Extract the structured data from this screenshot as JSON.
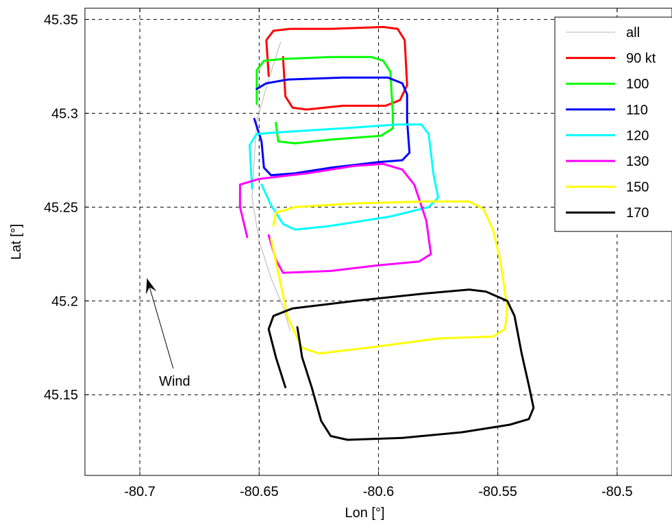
{
  "chart_data": {
    "type": "line",
    "title": "",
    "xlabel": "Lon [°]",
    "ylabel": "Lat [°]",
    "xlim": [
      -80.723,
      -80.477
    ],
    "ylim": [
      45.107,
      45.356
    ],
    "xticks": [
      -80.7,
      -80.65,
      -80.6,
      -80.55,
      -80.5
    ],
    "xtick_labels": [
      "-80.7",
      "-80.65",
      "-80.6",
      "-80.55",
      "-80.5"
    ],
    "yticks": [
      45.15,
      45.2,
      45.25,
      45.3,
      45.35
    ],
    "ytick_labels": [
      "45.15",
      "45.2",
      "45.25",
      "45.3",
      "45.35"
    ],
    "grid": true,
    "legend_position": "top-right",
    "series": [
      {
        "name": "all",
        "color": "#b4b4b4",
        "width": 1,
        "points": [
          [
            -80.641,
            45.338
          ],
          [
            -80.646,
            45.318
          ],
          [
            -80.651,
            45.296
          ],
          [
            -80.652,
            45.276
          ],
          [
            -80.653,
            45.255
          ],
          [
            -80.65,
            45.232
          ],
          [
            -80.645,
            45.212
          ],
          [
            -80.64,
            45.197
          ],
          [
            -80.637,
            45.184
          ]
        ]
      },
      {
        "name": "90 kt",
        "color": "#ff0000",
        "width": 3,
        "points": [
          [
            -80.646,
            45.32
          ],
          [
            -80.647,
            45.339
          ],
          [
            -80.644,
            45.344
          ],
          [
            -80.637,
            45.345
          ],
          [
            -80.62,
            45.345
          ],
          [
            -80.598,
            45.346
          ],
          [
            -80.592,
            45.345
          ],
          [
            -80.589,
            45.339
          ],
          [
            -80.588,
            45.315
          ],
          [
            -80.591,
            45.307
          ],
          [
            -80.597,
            45.304
          ],
          [
            -80.615,
            45.304
          ],
          [
            -80.63,
            45.302
          ],
          [
            -80.636,
            45.303
          ],
          [
            -80.639,
            45.309
          ],
          [
            -80.64,
            45.33
          ]
        ]
      },
      {
        "name": "100",
        "color": "#00ff00",
        "width": 3,
        "points": [
          [
            -80.651,
            45.305
          ],
          [
            -80.651,
            45.323
          ],
          [
            -80.648,
            45.328
          ],
          [
            -80.64,
            45.329
          ],
          [
            -80.62,
            45.33
          ],
          [
            -80.603,
            45.33
          ],
          [
            -80.598,
            45.328
          ],
          [
            -80.595,
            45.322
          ],
          [
            -80.594,
            45.3
          ],
          [
            -80.594,
            45.292
          ],
          [
            -80.599,
            45.288
          ],
          [
            -80.62,
            45.286
          ],
          [
            -80.635,
            45.284
          ],
          [
            -80.642,
            45.285
          ],
          [
            -80.643,
            45.295
          ]
        ]
      },
      {
        "name": "110",
        "color": "#0000ff",
        "width": 3,
        "points": [
          [
            -80.651,
            45.313
          ],
          [
            -80.647,
            45.316
          ],
          [
            -80.638,
            45.318
          ],
          [
            -80.615,
            45.319
          ],
          [
            -80.596,
            45.319
          ],
          [
            -80.59,
            45.316
          ],
          [
            -80.588,
            45.31
          ],
          [
            -80.588,
            45.296
          ],
          [
            -80.587,
            45.279
          ],
          [
            -80.59,
            45.275
          ],
          [
            -80.6,
            45.274
          ],
          [
            -80.62,
            45.271
          ],
          [
            -80.635,
            45.268
          ],
          [
            -80.645,
            45.267
          ],
          [
            -80.648,
            45.271
          ],
          [
            -80.649,
            45.285
          ],
          [
            -80.652,
            45.297
          ]
        ]
      },
      {
        "name": "120",
        "color": "#00ffff",
        "width": 3,
        "points": [
          [
            -80.653,
            45.26
          ],
          [
            -80.654,
            45.283
          ],
          [
            -80.651,
            45.289
          ],
          [
            -80.64,
            45.29
          ],
          [
            -80.615,
            45.292
          ],
          [
            -80.592,
            45.294
          ],
          [
            -80.582,
            45.294
          ],
          [
            -80.579,
            45.289
          ],
          [
            -80.577,
            45.268
          ],
          [
            -80.575,
            45.255
          ],
          [
            -80.579,
            45.25
          ],
          [
            -80.595,
            45.245
          ],
          [
            -80.62,
            45.24
          ],
          [
            -80.635,
            45.238
          ],
          [
            -80.64,
            45.241
          ],
          [
            -80.645,
            45.251
          ],
          [
            -80.649,
            45.262
          ]
        ]
      },
      {
        "name": "130",
        "color": "#ff00ff",
        "width": 3,
        "points": [
          [
            -80.655,
            45.234
          ],
          [
            -80.658,
            45.25
          ],
          [
            -80.658,
            45.262
          ],
          [
            -80.65,
            45.265
          ],
          [
            -80.63,
            45.268
          ],
          [
            -80.61,
            45.272
          ],
          [
            -80.598,
            45.273
          ],
          [
            -80.59,
            45.27
          ],
          [
            -80.585,
            45.262
          ],
          [
            -80.58,
            45.243
          ],
          [
            -80.578,
            45.225
          ],
          [
            -80.583,
            45.221
          ],
          [
            -80.6,
            45.219
          ],
          [
            -80.62,
            45.216
          ],
          [
            -80.64,
            45.215
          ],
          [
            -80.643,
            45.222
          ],
          [
            -80.646,
            45.235
          ]
        ]
      },
      {
        "name": "150",
        "color": "#ffff00",
        "width": 3,
        "points": [
          [
            -80.644,
            45.24
          ],
          [
            -80.643,
            45.247
          ],
          [
            -80.635,
            45.25
          ],
          [
            -80.61,
            45.252
          ],
          [
            -80.58,
            45.253
          ],
          [
            -80.562,
            45.253
          ],
          [
            -80.556,
            45.249
          ],
          [
            -80.552,
            45.238
          ],
          [
            -80.549,
            45.222
          ],
          [
            -80.546,
            45.196
          ],
          [
            -80.547,
            45.185
          ],
          [
            -80.552,
            45.181
          ],
          [
            -80.575,
            45.18
          ],
          [
            -80.605,
            45.175
          ],
          [
            -80.625,
            45.172
          ],
          [
            -80.632,
            45.175
          ],
          [
            -80.638,
            45.191
          ],
          [
            -80.642,
            45.215
          ],
          [
            -80.645,
            45.233
          ]
        ]
      },
      {
        "name": "170",
        "color": "#000000",
        "width": 3,
        "points": [
          [
            -80.639,
            45.154
          ],
          [
            -80.643,
            45.17
          ],
          [
            -80.646,
            45.185
          ],
          [
            -80.644,
            45.192
          ],
          [
            -80.636,
            45.196
          ],
          [
            -80.61,
            45.2
          ],
          [
            -80.58,
            45.204
          ],
          [
            -80.562,
            45.206
          ],
          [
            -80.555,
            45.205
          ],
          [
            -80.546,
            45.2
          ],
          [
            -80.543,
            45.192
          ],
          [
            -80.54,
            45.172
          ],
          [
            -80.537,
            45.155
          ],
          [
            -80.535,
            45.143
          ],
          [
            -80.537,
            45.137
          ],
          [
            -80.545,
            45.134
          ],
          [
            -80.565,
            45.13
          ],
          [
            -80.59,
            45.127
          ],
          [
            -80.613,
            45.126
          ],
          [
            -80.62,
            45.128
          ],
          [
            -80.624,
            45.136
          ],
          [
            -80.628,
            45.154
          ],
          [
            -80.632,
            45.17
          ],
          [
            -80.634,
            45.186
          ]
        ]
      }
    ],
    "annotations": [
      {
        "text": "Wind",
        "arrow_from": [
          -80.686,
          45.164
        ],
        "arrow_to": [
          -80.697,
          45.212
        ]
      }
    ]
  }
}
